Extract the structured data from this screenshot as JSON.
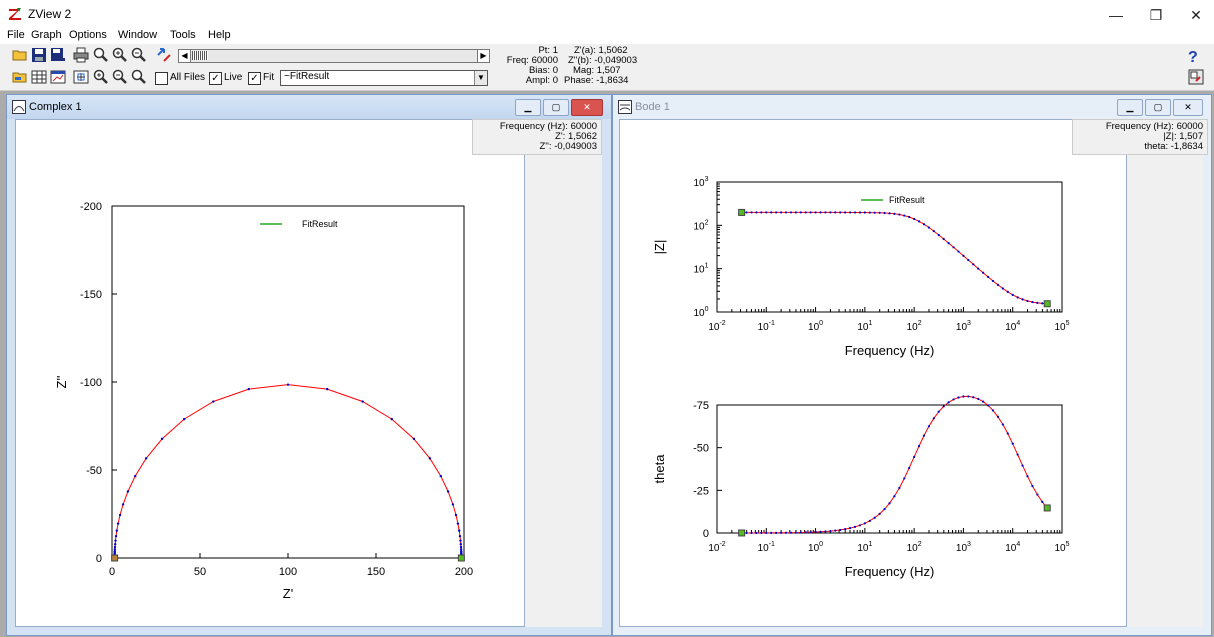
{
  "app": {
    "title": "ZView 2"
  },
  "window_controls": {
    "minimize": "—",
    "restore": "❐",
    "close": "✕"
  },
  "menu": [
    "File",
    "Graph",
    "Options",
    "Window",
    "Tools",
    "Help"
  ],
  "toolbar": {
    "all_files_label": "All Files",
    "live_label": "Live",
    "fit_label": "Fit",
    "all_files_checked": false,
    "live_checked": true,
    "fit_checked": true,
    "fit_select_value": "~FitResult"
  },
  "readout": {
    "pt": "Pt: 1",
    "freq": "Freq: 60000",
    "bias": "Bias: 0",
    "ampl": "Ampl: 0",
    "zre": "Z'(a): 1,5062",
    "zim": "Z''(b): -0,049003",
    "mag": "Mag: 1,507",
    "phase": "Phase: -1,8634"
  },
  "windows": {
    "complex": {
      "title": "Complex 1",
      "cursor": [
        "Frequency (Hz): 60000",
        "Z': 1,5062",
        "Z'': -0,049003"
      ]
    },
    "bode": {
      "title": "Bode 1",
      "cursor": [
        "Frequency (Hz): 60000",
        "|Z|: 1,507",
        "theta: -1,8634"
      ]
    }
  },
  "chart_data": [
    {
      "type": "line",
      "name": "complex",
      "xlabel": "Z'",
      "ylabel": "Z''",
      "xlim": [
        0,
        200
      ],
      "ylim": [
        0,
        -200
      ],
      "xticks": [
        "0",
        "50",
        "100",
        "150",
        "200"
      ],
      "yticks": [
        "0",
        "-50",
        "-100",
        "-150",
        "-200"
      ],
      "legend": "FitResult",
      "series": [
        {
          "name": "FitResult",
          "color": "#ff0000",
          "description_free": true
        }
      ],
      "R_ohm": [
        1.5,
        198.5
      ]
    },
    {
      "type": "line",
      "name": "bode-magnitude",
      "xlabel": "Frequency (Hz)",
      "ylabel": "|Z|",
      "xscale": "log",
      "yscale": "log",
      "xlim": [
        0.01,
        100000
      ],
      "ylim": [
        1,
        1000
      ],
      "xticks": [
        "10-2",
        "10-1",
        "100",
        "101",
        "102",
        "103",
        "104",
        "105"
      ],
      "yticks": [
        "100",
        "101",
        "102",
        "103"
      ],
      "legend": "FitResult"
    },
    {
      "type": "line",
      "name": "bode-phase",
      "xlabel": "Frequency (Hz)",
      "ylabel": "theta",
      "xscale": "log",
      "xlim": [
        0.01,
        100000
      ],
      "ylim": [
        0,
        -75
      ],
      "xticks": [
        "10-2",
        "10-1",
        "100",
        "101",
        "102",
        "103",
        "104",
        "105"
      ],
      "yticks": [
        "0",
        "-25",
        "-50",
        "-75"
      ]
    }
  ],
  "colors": {
    "fit_line": "#ff0000",
    "data_markers": "#0000cc",
    "legend_line": "#22aa22",
    "endpoint": "#55bb22"
  }
}
